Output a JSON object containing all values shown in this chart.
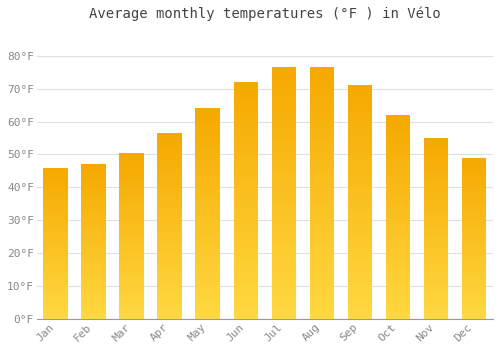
{
  "title": "Average monthly temperatures (°F ) in Vélo",
  "months": [
    "Jan",
    "Feb",
    "Mar",
    "Apr",
    "May",
    "Jun",
    "Jul",
    "Aug",
    "Sep",
    "Oct",
    "Nov",
    "Dec"
  ],
  "values": [
    46,
    47,
    50.5,
    56.5,
    64,
    72,
    76.5,
    76.5,
    71,
    62,
    55,
    49
  ],
  "bar_color_top": "#F5A800",
  "bar_color_bottom": "#FFD840",
  "ylim": [
    0,
    88
  ],
  "yticks": [
    0,
    10,
    20,
    30,
    40,
    50,
    60,
    70,
    80
  ],
  "ytick_labels": [
    "0°F",
    "10°F",
    "20°F",
    "30°F",
    "40°F",
    "50°F",
    "60°F",
    "70°F",
    "80°F"
  ],
  "bg_color": "#FFFFFF",
  "grid_color": "#E0E0E0",
  "title_fontsize": 10,
  "tick_fontsize": 8,
  "title_color": "#444444",
  "tick_color": "#888888",
  "bar_width": 0.65,
  "figsize": [
    5.0,
    3.5
  ],
  "dpi": 100
}
